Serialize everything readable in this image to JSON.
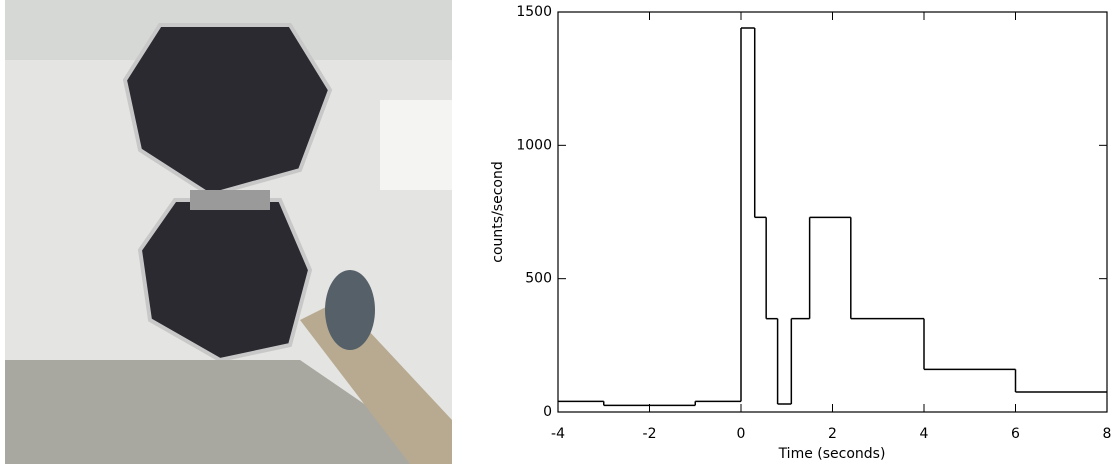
{
  "chart_data": {
    "type": "histogram",
    "xlabel": "Time (seconds)",
    "ylabel": "counts/second",
    "bins": [
      -4,
      -3,
      -1,
      0,
      0.3,
      0.55,
      0.8,
      1.1,
      1.5,
      2.4,
      4,
      6,
      8
    ],
    "counts": [
      40,
      25,
      40,
      1440,
      730,
      350,
      30,
      350,
      730,
      350,
      160,
      75
    ],
    "color": "#000000",
    "xlim": [
      -4,
      8
    ],
    "xticks": [
      -4,
      -2,
      0,
      2,
      4,
      6,
      8
    ],
    "ylim": [
      0,
      1500
    ],
    "yticks": [
      0,
      500,
      1000,
      1500
    ]
  }
}
